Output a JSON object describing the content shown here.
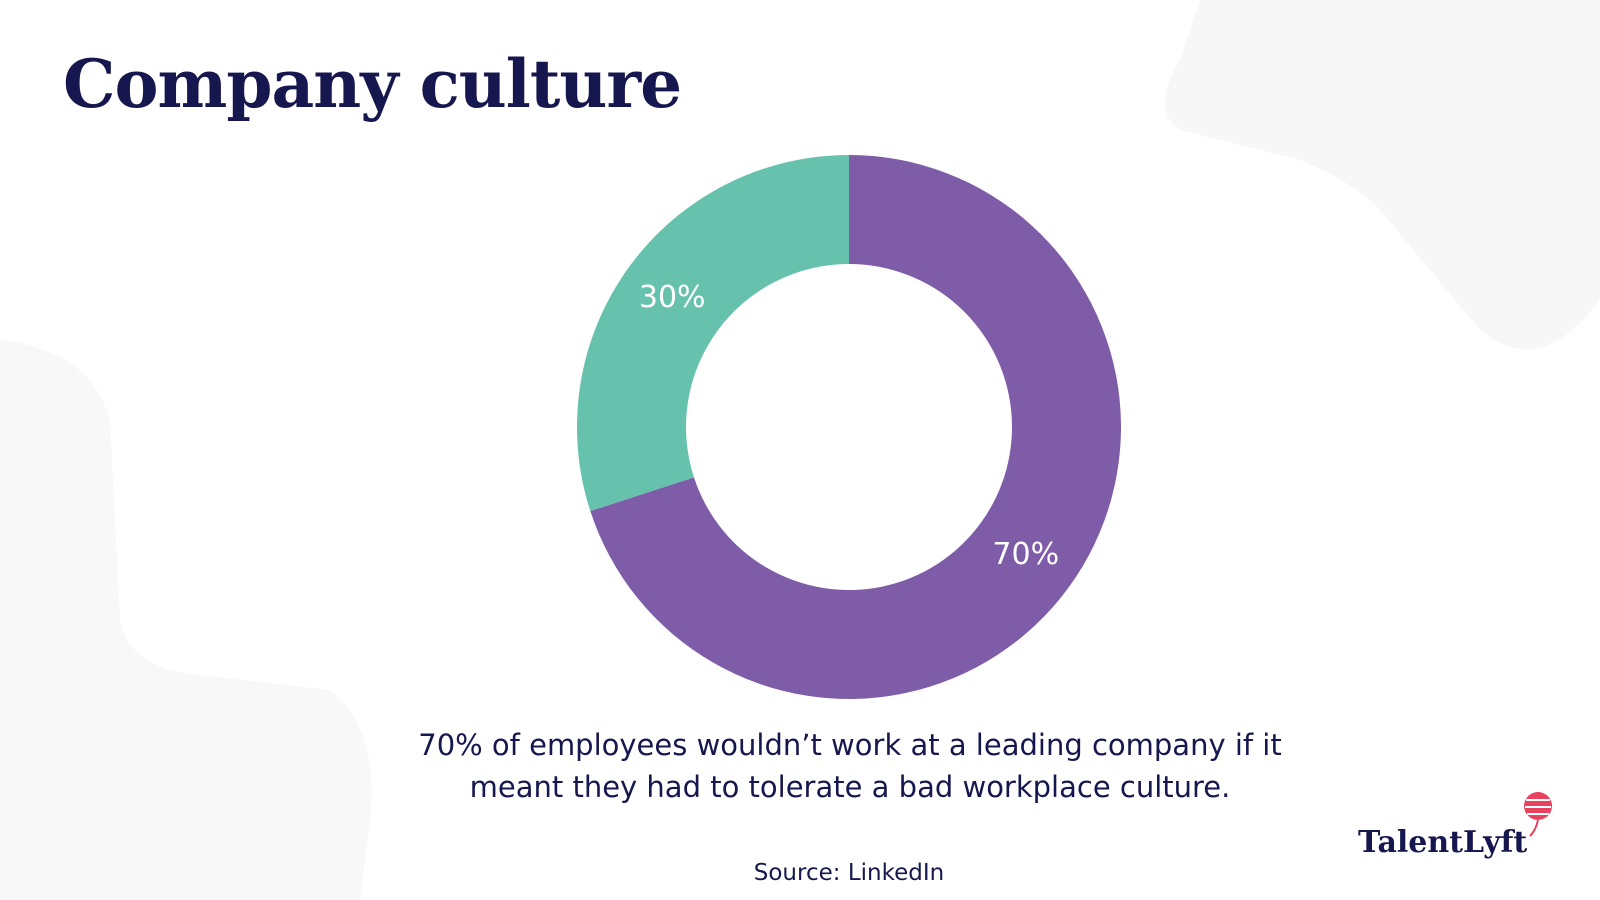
{
  "chart_data": {
    "type": "donut",
    "title": "Company culture",
    "values": [
      70,
      30
    ],
    "value_labels": [
      "70%",
      "30%"
    ],
    "colors": [
      "#7f5ca8",
      "#66c2ad"
    ],
    "caption": "70% of employees wouldn’t work at a leading company if it meant they had to tolerate a bad workplace culture.",
    "source": "Source: LinkedIn"
  },
  "brand": "TalentLyft"
}
